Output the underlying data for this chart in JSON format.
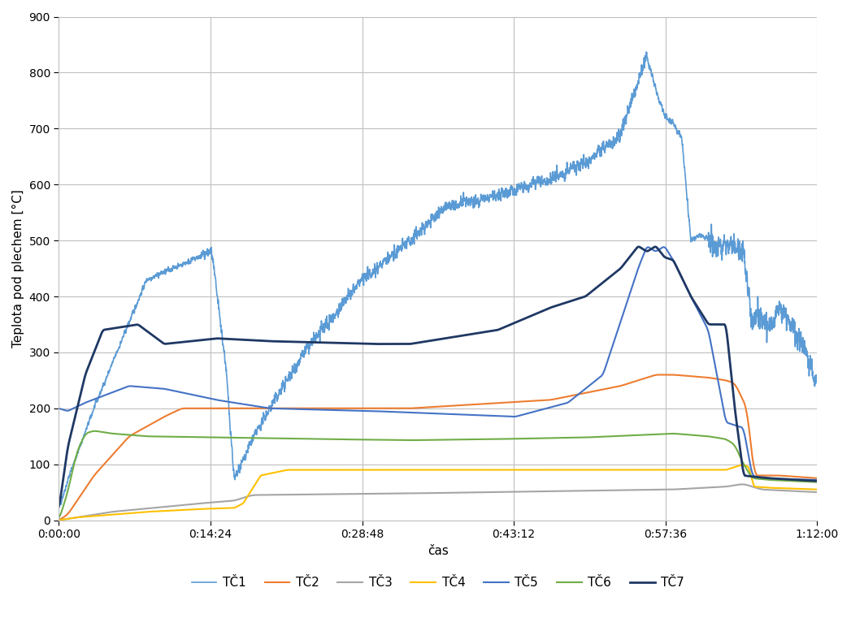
{
  "title": "",
  "xlabel": "čas",
  "ylabel": "Teplota pod plechem [°C]",
  "ylim": [
    0,
    900
  ],
  "yticks": [
    0,
    100,
    200,
    300,
    400,
    500,
    600,
    700,
    800,
    900
  ],
  "xlim_seconds": [
    0,
    4320
  ],
  "xtick_seconds": [
    0,
    864,
    1728,
    2592,
    3456,
    4320
  ],
  "xtick_labels": [
    "0:00:00",
    "0:14:24",
    "0:28:48",
    "0:43:12",
    "0:57:36",
    "1:12:00"
  ],
  "legend_labels": [
    "TČ1",
    "TČ2",
    "TČ3",
    "TČ4",
    "TČ5",
    "TČ6",
    "TČ7"
  ],
  "colors": {
    "TC1": "#5B9BD5",
    "TC2": "#ED7D31",
    "TC3": "#A5A5A5",
    "TC4": "#FFC000",
    "TC5": "#4472C4",
    "TC6": "#70AD47",
    "TC7": "#1F3864"
  },
  "line_widths": {
    "TC1": 1.2,
    "TC2": 1.5,
    "TC3": 1.5,
    "TC4": 1.5,
    "TC5": 1.5,
    "TC6": 1.5,
    "TC7": 2.0
  },
  "background_color": "#FFFFFF",
  "grid_color": "#BFBFBF",
  "total_points": 4320
}
